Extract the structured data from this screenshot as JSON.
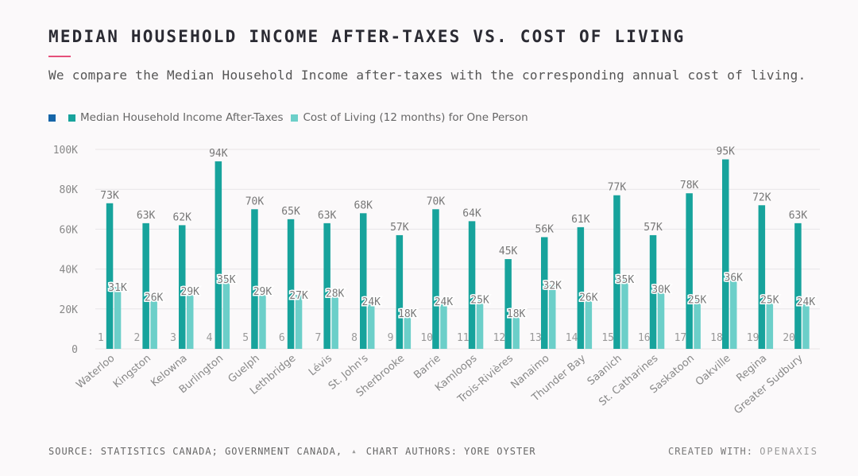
{
  "header": {
    "title": "MEDIAN HOUSEHOLD INCOME AFTER-TAXES VS. COST OF LIVING",
    "subtitle": "We compare the Median Household Income after-taxes with the corresponding annual cost of living."
  },
  "legend": {
    "item0": {
      "label": "",
      "color": "#1565a8"
    },
    "item1": {
      "label": "Median Household Income After-Taxes",
      "color": "#17a39c"
    },
    "item2": {
      "label": "Cost of Living (12 months) for One Person",
      "color": "#6ccfc9"
    }
  },
  "footer": {
    "source": "SOURCE: STATISTICS CANADA; GOVERNMENT CANADA,",
    "authors": "CHART AUTHORS: YORE OYSTER",
    "created_with": "CREATED WITH:",
    "brand": "OPENAXIS"
  },
  "chart_data": {
    "type": "bar",
    "title": "MEDIAN HOUSEHOLD INCOME AFTER-TAXES VS. COST OF LIVING",
    "xlabel": "",
    "ylabel": "",
    "ylim": [
      0,
      100000
    ],
    "yticks": [
      "0",
      "20K",
      "40K",
      "60K",
      "80K",
      "100K"
    ],
    "grid": true,
    "legend_position": "top-left",
    "categories": [
      "Waterloo",
      "Kingston",
      "Kelowna",
      "Burlington",
      "Guelph",
      "Lethbridge",
      "Lévis",
      "St. John's",
      "Sherbrooke",
      "Barrie",
      "Kamloops",
      "Trois-Rivières",
      "Nanaimo",
      "Thunder Bay",
      "Saanich",
      "St. Catharines",
      "Saskatoon",
      "Oakville",
      "Regina",
      "Greater Sudbury"
    ],
    "index_series": {
      "name": "",
      "values": [
        1,
        2,
        3,
        4,
        5,
        6,
        7,
        8,
        9,
        10,
        11,
        12,
        13,
        14,
        15,
        16,
        17,
        18,
        19,
        20
      ]
    },
    "series": [
      {
        "name": "Median Household Income After-Taxes",
        "values": [
          73000,
          63000,
          62000,
          94000,
          70000,
          65000,
          63000,
          68000,
          57000,
          70000,
          64000,
          45000,
          56000,
          61000,
          77000,
          57000,
          78000,
          95000,
          72000,
          63000
        ],
        "labels": [
          "73K",
          "63K",
          "62K",
          "94K",
          "70K",
          "65K",
          "63K",
          "68K",
          "57K",
          "70K",
          "64K",
          "45K",
          "56K",
          "61K",
          "77K",
          "57K",
          "78K",
          "95K",
          "72K",
          "63K"
        ]
      },
      {
        "name": "Cost of Living (12 months) for One Person",
        "values": [
          31000,
          26000,
          29000,
          35000,
          29000,
          27000,
          28000,
          24000,
          18000,
          24000,
          25000,
          18000,
          32000,
          26000,
          35000,
          30000,
          25000,
          36000,
          25000,
          24000
        ],
        "labels": [
          "31K",
          "26K",
          "29K",
          "35K",
          "29K",
          "27K",
          "28K",
          "24K",
          "18K",
          "24K",
          "25K",
          "18K",
          "32K",
          "26K",
          "35K",
          "30K",
          "25K",
          "36K",
          "25K",
          "24K"
        ]
      }
    ]
  }
}
